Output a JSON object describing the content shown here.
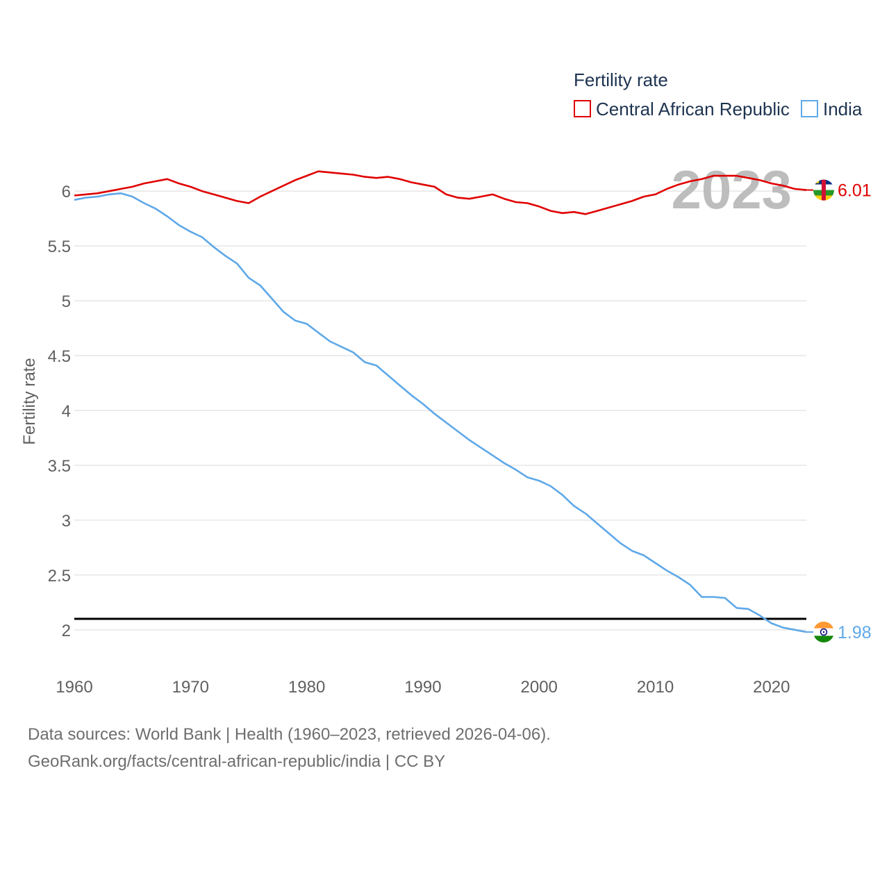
{
  "chart_data": {
    "type": "line",
    "legend_title": "Fertility rate",
    "ylabel": "Fertility rate",
    "xlabel": "",
    "xlim": [
      1960,
      2023
    ],
    "ylim": [
      1.6,
      6.4
    ],
    "yticks": [
      2,
      2.5,
      3,
      3.5,
      4,
      4.5,
      5,
      5.5,
      6
    ],
    "xticks": [
      1960,
      1970,
      1980,
      1990,
      2000,
      2010,
      2020
    ],
    "year_label": "2023",
    "reference_line": 2.1,
    "grid": true,
    "legend_position": "top-right",
    "x": [
      1960,
      1961,
      1962,
      1963,
      1964,
      1965,
      1966,
      1967,
      1968,
      1969,
      1970,
      1971,
      1972,
      1973,
      1974,
      1975,
      1976,
      1977,
      1978,
      1979,
      1980,
      1981,
      1982,
      1983,
      1984,
      1985,
      1986,
      1987,
      1988,
      1989,
      1990,
      1991,
      1992,
      1993,
      1994,
      1995,
      1996,
      1997,
      1998,
      1999,
      2000,
      2001,
      2002,
      2003,
      2004,
      2005,
      2006,
      2007,
      2008,
      2009,
      2010,
      2011,
      2012,
      2013,
      2014,
      2015,
      2016,
      2017,
      2018,
      2019,
      2020,
      2021,
      2022,
      2023
    ],
    "series": [
      {
        "name": "Central African Republic",
        "color": "#e00000",
        "end_label": "6.01",
        "values": [
          5.96,
          5.97,
          5.98,
          6.0,
          6.02,
          6.04,
          6.07,
          6.09,
          6.11,
          6.07,
          6.04,
          6.0,
          5.97,
          5.94,
          5.91,
          5.89,
          5.95,
          6.0,
          6.05,
          6.1,
          6.14,
          6.18,
          6.17,
          6.16,
          6.15,
          6.13,
          6.12,
          6.13,
          6.11,
          6.08,
          6.06,
          6.04,
          5.97,
          5.94,
          5.93,
          5.95,
          5.97,
          5.93,
          5.9,
          5.89,
          5.86,
          5.82,
          5.8,
          5.81,
          5.79,
          5.82,
          5.85,
          5.88,
          5.91,
          5.95,
          5.97,
          6.02,
          6.06,
          6.09,
          6.11,
          6.14,
          6.14,
          6.14,
          6.12,
          6.1,
          6.07,
          6.05,
          6.02,
          6.01
        ]
      },
      {
        "name": "India",
        "color": "#5ea8e8",
        "end_label": "1.98",
        "values": [
          5.92,
          5.94,
          5.95,
          5.97,
          5.98,
          5.95,
          5.89,
          5.84,
          5.77,
          5.69,
          5.63,
          5.58,
          5.49,
          5.41,
          5.34,
          5.21,
          5.14,
          5.02,
          4.9,
          4.82,
          4.79,
          4.71,
          4.63,
          4.58,
          4.53,
          4.44,
          4.41,
          4.32,
          4.23,
          4.14,
          4.06,
          3.97,
          3.89,
          3.81,
          3.73,
          3.66,
          3.59,
          3.52,
          3.46,
          3.39,
          3.36,
          3.31,
          3.23,
          3.13,
          3.06,
          2.97,
          2.88,
          2.79,
          2.72,
          2.68,
          2.61,
          2.54,
          2.48,
          2.41,
          2.3,
          2.3,
          2.29,
          2.2,
          2.19,
          2.13,
          2.06,
          2.02,
          2.0,
          1.98
        ]
      }
    ]
  },
  "footer": {
    "line1": "Data sources: World Bank | Health (1960–2023, retrieved 2026-04-06).",
    "line2": "GeoRank.org/facts/central-african-republic/india | CC BY"
  },
  "icons": {
    "car_flag": "central-african-republic-flag-icon",
    "india_flag": "india-flag-icon"
  }
}
